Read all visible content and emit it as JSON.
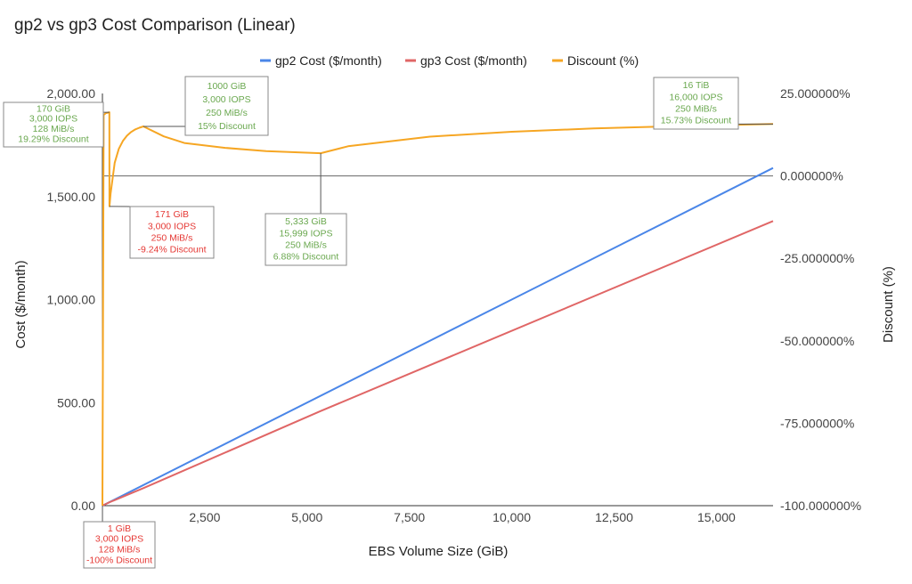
{
  "chart_data": {
    "type": "line",
    "title": "gp2 vs gp3 Cost Comparison (Linear)",
    "xlabel": "EBS Volume Size (GiB)",
    "ylabel": "Cost ($/month)",
    "y2label": "Discount (%)",
    "xlim": [
      0,
      16384
    ],
    "ylim": [
      0,
      2000
    ],
    "y2lim": [
      -100,
      25
    ],
    "x_ticks": [
      2500,
      5000,
      7500,
      10000,
      12500,
      15000
    ],
    "x_tick_labels": [
      "2,500",
      "5,000",
      "7,500",
      "10,000",
      "12,500",
      "15,000"
    ],
    "y_ticks": [
      0,
      500,
      1000,
      1500,
      2000
    ],
    "y_tick_labels": [
      "0.00",
      "500.00",
      "1,000.00",
      "1,500.00",
      "2,000.00"
    ],
    "y2_ticks": [
      -100,
      -75,
      -50,
      -25,
      0,
      25
    ],
    "y2_tick_labels": [
      "-100.000000%",
      "-75.000000%",
      "-50.000000%",
      "-25.000000%",
      "0.000000%",
      "25.000000%"
    ],
    "legend_position": "top",
    "grid": false,
    "series": [
      {
        "name": "gp2 Cost ($/month)",
        "axis": "left",
        "color": "#4a86e8",
        "x": [
          0,
          16384
        ],
        "y": [
          0,
          1638.4
        ]
      },
      {
        "name": "gp3 Cost ($/month)",
        "axis": "left",
        "color": "#e06666",
        "x": [
          0,
          171,
          1000,
          5333,
          16384
        ],
        "y": [
          0,
          16.2,
          85.0,
          459.3,
          1381.0
        ]
      },
      {
        "name": "Discount (%)",
        "axis": "right",
        "color": "#f6a623",
        "x": [
          1,
          30,
          80,
          140,
          170,
          171,
          200,
          300,
          400,
          500,
          600,
          700,
          800,
          900,
          1000,
          1500,
          2000,
          3000,
          4000,
          5333,
          6000,
          8000,
          10000,
          12000,
          14000,
          16384
        ],
        "y": [
          -100,
          18.5,
          19.0,
          19.2,
          19.29,
          -9.24,
          -5.3,
          4.0,
          8.2,
          10.6,
          12.2,
          13.3,
          14.1,
          14.6,
          15.0,
          12.0,
          10.0,
          8.5,
          7.5,
          6.88,
          9.0,
          11.9,
          13.4,
          14.4,
          15.1,
          15.73
        ]
      }
    ],
    "annotations": [
      {
        "x": 170,
        "y": 19.29,
        "axis": "right",
        "color": "#6aa84f",
        "lines": [
          "170 GiB",
          "3,000 IOPS",
          "128 MiB/s",
          "19.29% Discount"
        ]
      },
      {
        "x": 1000,
        "y": 15,
        "axis": "right",
        "color": "#6aa84f",
        "lines": [
          "1000 GiB",
          "3,000 IOPS",
          "250 MiB/s",
          "15% Discount"
        ]
      },
      {
        "x": 171,
        "y": -9.24,
        "axis": "right",
        "color": "#e53935",
        "lines": [
          "171 GiB",
          "3,000 IOPS",
          "250 MiB/s",
          "-9.24% Discount"
        ]
      },
      {
        "x": 5333,
        "y": 6.88,
        "axis": "right",
        "color": "#6aa84f",
        "lines": [
          "5,333 GiB",
          "15,999 IOPS",
          "250 MiB/s",
          "6.88% Discount"
        ]
      },
      {
        "x": 16384,
        "y": 15.73,
        "axis": "right",
        "color": "#6aa84f",
        "lines": [
          "16 TiB",
          "16,000 IOPS",
          "250 MiB/s",
          "15.73% Discount"
        ]
      },
      {
        "x": 1,
        "y": -100,
        "axis": "right",
        "color": "#e53935",
        "lines": [
          "1 GiB",
          "3,000 IOPS",
          "128 MiB/s",
          "-100% Discount"
        ]
      }
    ]
  }
}
